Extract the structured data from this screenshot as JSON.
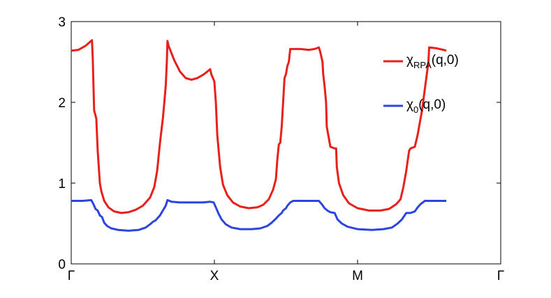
{
  "chart_data": {
    "type": "line",
    "title": "",
    "xlabel": "",
    "ylabel": "",
    "xlim": [
      0,
      3
    ],
    "ylim": [
      0,
      3
    ],
    "grid": false,
    "legend_position": "top-right",
    "x_ticks": [
      {
        "value": 0,
        "label": "Γ"
      },
      {
        "value": 1,
        "label": "X"
      },
      {
        "value": 2,
        "label": "M"
      },
      {
        "value": 3,
        "label": "Γ"
      }
    ],
    "y_ticks": [
      {
        "value": 0,
        "label": "0"
      },
      {
        "value": 1,
        "label": "1"
      },
      {
        "value": 2,
        "label": "2"
      },
      {
        "value": 3,
        "label": "3"
      }
    ],
    "series": [
      {
        "name": "χRPA(q,0)",
        "legend_main": "χ",
        "legend_sub": "RPA",
        "legend_rest": "(q,0)",
        "color": "#e8201c",
        "points": [
          [
            0.0,
            2.64
          ],
          [
            0.05,
            2.65
          ],
          [
            0.1,
            2.7
          ],
          [
            0.145,
            2.77
          ],
          [
            0.15,
            2.55
          ],
          [
            0.16,
            1.9
          ],
          [
            0.175,
            1.8
          ],
          [
            0.185,
            1.4
          ],
          [
            0.2,
            1.0
          ],
          [
            0.21,
            0.9
          ],
          [
            0.23,
            0.78
          ],
          [
            0.26,
            0.7
          ],
          [
            0.3,
            0.65
          ],
          [
            0.35,
            0.63
          ],
          [
            0.4,
            0.64
          ],
          [
            0.45,
            0.67
          ],
          [
            0.5,
            0.72
          ],
          [
            0.55,
            0.82
          ],
          [
            0.58,
            0.95
          ],
          [
            0.6,
            1.15
          ],
          [
            0.62,
            1.5
          ],
          [
            0.64,
            1.8
          ],
          [
            0.65,
            2.0
          ],
          [
            0.66,
            2.2
          ],
          [
            0.668,
            2.5
          ],
          [
            0.672,
            2.76
          ],
          [
            0.68,
            2.7
          ],
          [
            0.72,
            2.52
          ],
          [
            0.76,
            2.38
          ],
          [
            0.8,
            2.3
          ],
          [
            0.84,
            2.28
          ],
          [
            0.88,
            2.3
          ],
          [
            0.92,
            2.34
          ],
          [
            0.95,
            2.38
          ],
          [
            0.97,
            2.41
          ],
          [
            0.98,
            2.34
          ],
          [
            0.995,
            2.28
          ],
          [
            1.0,
            2.25
          ],
          [
            1.01,
            2.0
          ],
          [
            1.02,
            1.6
          ],
          [
            1.04,
            1.2
          ],
          [
            1.06,
            0.98
          ],
          [
            1.09,
            0.85
          ],
          [
            1.13,
            0.76
          ],
          [
            1.18,
            0.71
          ],
          [
            1.24,
            0.69
          ],
          [
            1.3,
            0.7
          ],
          [
            1.34,
            0.73
          ],
          [
            1.38,
            0.8
          ],
          [
            1.41,
            0.92
          ],
          [
            1.43,
            1.05
          ],
          [
            1.44,
            1.3
          ],
          [
            1.45,
            1.48
          ],
          [
            1.46,
            1.5
          ],
          [
            1.47,
            1.7
          ],
          [
            1.48,
            2.0
          ],
          [
            1.49,
            2.3
          ],
          [
            1.5,
            2.35
          ],
          [
            1.51,
            2.45
          ],
          [
            1.52,
            2.5
          ],
          [
            1.53,
            2.66
          ],
          [
            1.6,
            2.66
          ],
          [
            1.66,
            2.65
          ],
          [
            1.7,
            2.66
          ],
          [
            1.73,
            2.68
          ],
          [
            1.74,
            2.62
          ],
          [
            1.755,
            2.5
          ],
          [
            1.76,
            2.35
          ],
          [
            1.77,
            2.2
          ],
          [
            1.78,
            2.0
          ],
          [
            1.785,
            1.7
          ],
          [
            1.8,
            1.55
          ],
          [
            1.81,
            1.45
          ],
          [
            1.84,
            1.43
          ],
          [
            1.85,
            1.43
          ],
          [
            1.855,
            1.2
          ],
          [
            1.87,
            1.0
          ],
          [
            1.9,
            0.85
          ],
          [
            1.94,
            0.75
          ],
          [
            2.0,
            0.69
          ],
          [
            2.08,
            0.66
          ],
          [
            2.16,
            0.66
          ],
          [
            2.22,
            0.68
          ],
          [
            2.27,
            0.74
          ],
          [
            2.3,
            0.8
          ],
          [
            2.32,
            0.95
          ],
          [
            2.34,
            1.15
          ],
          [
            2.36,
            1.4
          ],
          [
            2.37,
            1.43
          ],
          [
            2.4,
            1.45
          ],
          [
            2.42,
            1.6
          ],
          [
            2.45,
            1.9
          ],
          [
            2.48,
            2.3
          ],
          [
            2.495,
            2.5
          ],
          [
            2.5,
            2.68
          ],
          [
            2.55,
            2.67
          ],
          [
            2.6,
            2.65
          ],
          [
            2.62,
            2.64
          ]
        ]
      },
      {
        "name": "χ0(q,0)",
        "legend_main": "χ",
        "legend_sub": "0",
        "legend_rest": "(q,0)",
        "color": "#2c44e0",
        "points": [
          [
            0.0,
            0.78
          ],
          [
            0.08,
            0.78
          ],
          [
            0.14,
            0.79
          ],
          [
            0.155,
            0.74
          ],
          [
            0.17,
            0.68
          ],
          [
            0.185,
            0.66
          ],
          [
            0.2,
            0.6
          ],
          [
            0.215,
            0.58
          ],
          [
            0.23,
            0.51
          ],
          [
            0.25,
            0.47
          ],
          [
            0.28,
            0.44
          ],
          [
            0.33,
            0.42
          ],
          [
            0.4,
            0.41
          ],
          [
            0.47,
            0.42
          ],
          [
            0.52,
            0.45
          ],
          [
            0.55,
            0.49
          ],
          [
            0.57,
            0.52
          ],
          [
            0.59,
            0.54
          ],
          [
            0.62,
            0.6
          ],
          [
            0.64,
            0.66
          ],
          [
            0.66,
            0.72
          ],
          [
            0.672,
            0.79
          ],
          [
            0.7,
            0.77
          ],
          [
            0.76,
            0.76
          ],
          [
            0.84,
            0.76
          ],
          [
            0.92,
            0.76
          ],
          [
            0.97,
            0.77
          ],
          [
            0.995,
            0.76
          ],
          [
            1.01,
            0.7
          ],
          [
            1.03,
            0.62
          ],
          [
            1.05,
            0.55
          ],
          [
            1.08,
            0.49
          ],
          [
            1.12,
            0.45
          ],
          [
            1.18,
            0.43
          ],
          [
            1.26,
            0.43
          ],
          [
            1.32,
            0.44
          ],
          [
            1.37,
            0.47
          ],
          [
            1.4,
            0.51
          ],
          [
            1.43,
            0.56
          ],
          [
            1.45,
            0.6
          ],
          [
            1.47,
            0.63
          ],
          [
            1.48,
            0.66
          ],
          [
            1.5,
            0.69
          ],
          [
            1.51,
            0.72
          ],
          [
            1.53,
            0.76
          ],
          [
            1.55,
            0.78
          ],
          [
            1.62,
            0.78
          ],
          [
            1.7,
            0.78
          ],
          [
            1.73,
            0.78
          ],
          [
            1.75,
            0.74
          ],
          [
            1.77,
            0.69
          ],
          [
            1.79,
            0.66
          ],
          [
            1.81,
            0.64
          ],
          [
            1.84,
            0.63
          ],
          [
            1.86,
            0.55
          ],
          [
            1.89,
            0.5
          ],
          [
            1.93,
            0.46
          ],
          [
            2.0,
            0.43
          ],
          [
            2.1,
            0.42
          ],
          [
            2.18,
            0.43
          ],
          [
            2.24,
            0.45
          ],
          [
            2.28,
            0.5
          ],
          [
            2.31,
            0.55
          ],
          [
            2.34,
            0.63
          ],
          [
            2.37,
            0.63
          ],
          [
            2.4,
            0.65
          ],
          [
            2.42,
            0.7
          ],
          [
            2.44,
            0.74
          ],
          [
            2.47,
            0.78
          ],
          [
            2.55,
            0.78
          ],
          [
            2.62,
            0.78
          ]
        ]
      }
    ]
  }
}
